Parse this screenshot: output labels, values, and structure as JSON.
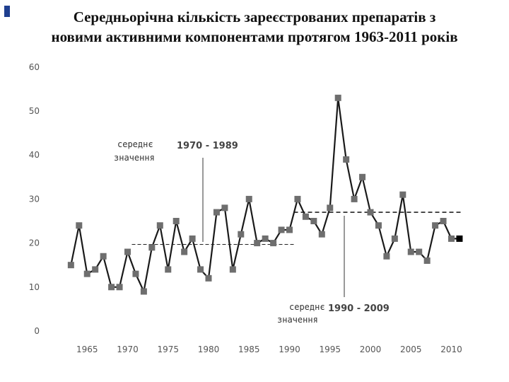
{
  "slide": {
    "title_line1": "Середньорічна кількість зареєстрованих препаратів з",
    "title_line2": "новими активними компонентами протягом 1963-2011 років"
  },
  "chart_data": {
    "type": "line",
    "title": "Середньорічна кількість зареєстрованих препаратів з новими активними компонентами протягом 1963-2011 років",
    "xlabel": "",
    "ylabel": "",
    "xlim": [
      1960,
      2012
    ],
    "ylim": [
      0,
      60
    ],
    "x_ticks": [
      1965,
      1970,
      1975,
      1980,
      1985,
      1990,
      1995,
      2000,
      2005,
      2010
    ],
    "y_ticks": [
      0,
      10,
      20,
      30,
      40,
      50,
      60
    ],
    "grid": false,
    "series": [
      {
        "x": [
          1963,
          1964,
          1965,
          1966,
          1967,
          1968,
          1969,
          1970,
          1971,
          1972,
          1973,
          1974,
          1975,
          1976,
          1977,
          1978,
          1979,
          1980,
          1981,
          1982,
          1983,
          1984,
          1985,
          1986,
          1987,
          1988,
          1989,
          1990,
          1991,
          1992,
          1993,
          1994,
          1995,
          1996,
          1997,
          1998,
          1999,
          2000,
          2001,
          2002,
          2003,
          2004,
          2005,
          2006,
          2007,
          2008,
          2009,
          2010,
          2011
        ],
        "values": [
          15,
          24,
          13,
          14,
          17,
          10,
          10,
          18,
          13,
          9,
          19,
          24,
          14,
          25,
          18,
          21,
          14,
          12,
          27,
          28,
          14,
          22,
          30,
          20,
          21,
          20,
          23,
          23,
          30,
          26,
          25,
          22,
          28,
          53,
          39,
          30,
          35,
          27,
          24,
          17,
          21,
          31,
          18,
          18,
          16,
          24,
          25,
          21,
          21
        ],
        "color": "#1a1a1a",
        "marker_color": "#6e6e6e"
      }
    ],
    "reference_lines": [
      {
        "label": "середнє значення",
        "period": "1970 - 1989",
        "value": 19.7,
        "x_range": [
          1970,
          1990
        ]
      },
      {
        "label": "середнє значення",
        "period": "1990 - 2009",
        "value": 27,
        "x_range": [
          1990,
          2011
        ]
      }
    ]
  }
}
